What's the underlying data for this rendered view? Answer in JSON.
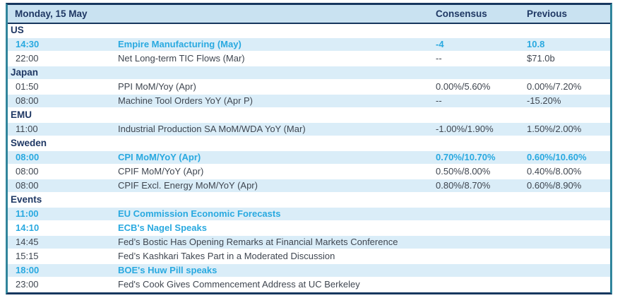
{
  "header": {
    "date_label": "Monday, 15 May",
    "consensus_label": "Consensus",
    "previous_label": "Previous"
  },
  "colors": {
    "accent_cyan": "#29A9E0",
    "navy_text": "#1F3864",
    "navy_border": "#17375E",
    "teal_border": "#31859C",
    "header_bg": "#C9E2F1",
    "stripe_bg": "#DAEDF8",
    "body_text": "#3F4650"
  },
  "sections": [
    {
      "name": "US",
      "rows": [
        {
          "time": "14:30",
          "event": "Empire Manufacturing (May)",
          "consensus": "-4",
          "previous": "10.8",
          "highlight": true
        },
        {
          "time": "22:00",
          "event": "Net Long-term TIC Flows (Mar)",
          "consensus": "--",
          "previous": "$71.0b",
          "highlight": false
        }
      ]
    },
    {
      "name": "Japan",
      "rows": [
        {
          "time": "01:50",
          "event": "PPI MoM/Yoy (Apr)",
          "consensus": "0.00%/5.60%",
          "previous": "0.00%/7.20%",
          "highlight": false
        },
        {
          "time": "08:00",
          "event": "Machine Tool Orders YoY (Apr P)",
          "consensus": "--",
          "previous": "-15.20%",
          "highlight": false
        }
      ]
    },
    {
      "name": "EMU",
      "rows": [
        {
          "time": "11:00",
          "event": "Industrial Production SA MoM/WDA YoY (Mar)",
          "consensus": "-1.00%/1.90%",
          "previous": "1.50%/2.00%",
          "highlight": false
        }
      ]
    },
    {
      "name": "Sweden",
      "rows": [
        {
          "time": "08:00",
          "event": "CPI MoM/YoY (Apr)",
          "consensus": "0.70%/10.70%",
          "previous": "0.60%/10.60%",
          "highlight": true
        },
        {
          "time": "08:00",
          "event": "CPIF MoM/YoY (Apr)",
          "consensus": "0.50%/8.00%",
          "previous": "0.40%/8.00%",
          "highlight": false
        },
        {
          "time": "08:00",
          "event": "CPIF Excl. Energy MoM/YoY (Apr)",
          "consensus": "0.80%/8.70%",
          "previous": "0.60%/8.90%",
          "highlight": false
        }
      ]
    },
    {
      "name": "Events",
      "rows": [
        {
          "time": "11:00",
          "event": "EU Commission Economic Forecasts",
          "consensus": "",
          "previous": "",
          "highlight": true
        },
        {
          "time": "14:10",
          "event": "ECB's Nagel Speaks",
          "consensus": "",
          "previous": "",
          "highlight": true
        },
        {
          "time": "14:45",
          "event": "Fed’s Bostic Has Opening Remarks at Financial Markets Conference",
          "consensus": "",
          "previous": "",
          "highlight": false
        },
        {
          "time": "15:15",
          "event": "Fed’s Kashkari Takes Part in a Moderated Discussion",
          "consensus": "",
          "previous": "",
          "highlight": false
        },
        {
          "time": "18:00",
          "event": "BOE's Huw Pill speaks",
          "consensus": "",
          "previous": "",
          "highlight": true
        },
        {
          "time": "23:00",
          "event": "Fed's Cook Gives Commencement Address at UC Berkeley",
          "consensus": "",
          "previous": "",
          "highlight": false
        }
      ]
    }
  ]
}
